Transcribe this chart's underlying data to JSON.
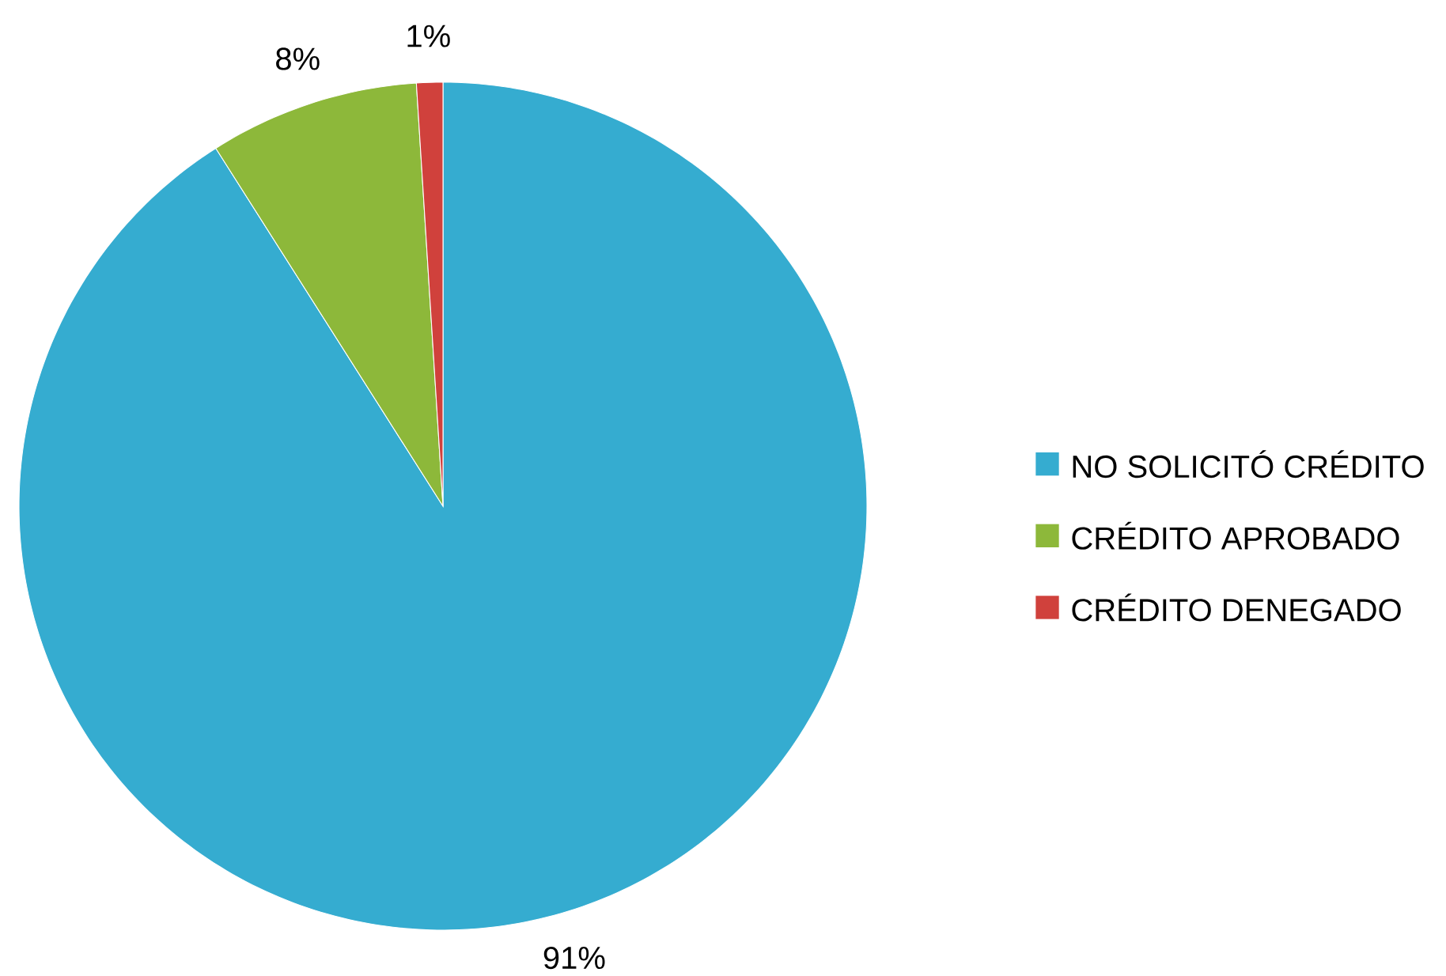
{
  "chart_data": {
    "type": "pie",
    "categories": [
      "NO SOLICITÓ CRÉDITO",
      "CRÉDITO APROBADO",
      "CRÉDITO DENEGADO"
    ],
    "values": [
      91,
      8,
      1
    ],
    "colors": [
      "#35acd0",
      "#8db83a",
      "#d0413c"
    ],
    "value_labels": [
      "91%",
      "8%",
      "1%"
    ],
    "legend": "right"
  }
}
